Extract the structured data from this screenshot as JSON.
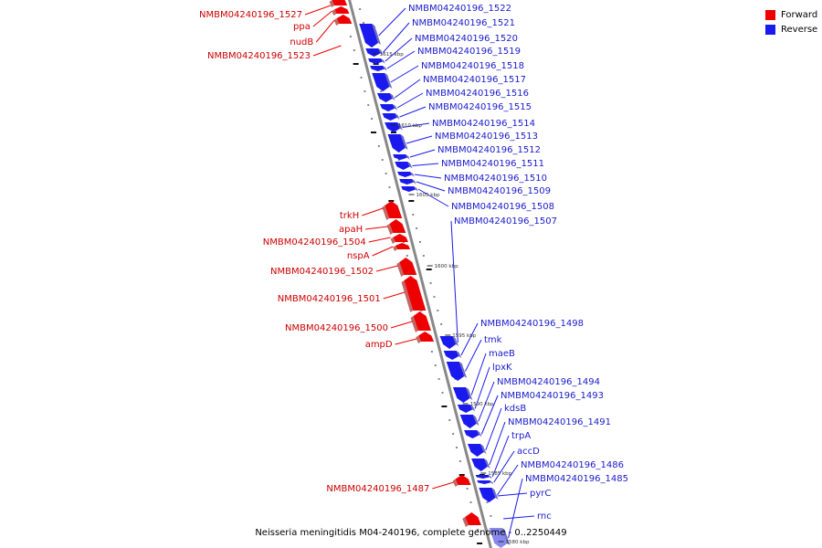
{
  "legend": {
    "forward_label": "Forward",
    "reverse_label": "Reverse",
    "forward_color": "#ee0000",
    "reverse_color": "#1a1aee"
  },
  "caption": "Neisseria meningitidis M04-240196, complete genome - 0..2250449",
  "colors": {
    "forward": "#ee0000",
    "reverse": "#1a1aee",
    "forward_text": "#cc0000",
    "reverse_text": "#1a1acc",
    "axis": "#888888"
  },
  "scale_labels": [
    "1615 kbp",
    "1610 kbp",
    "1605 kbp",
    "1600 kbp",
    "1595 kbp",
    "1590 kbp",
    "1585 kbp",
    "1580 kbp"
  ],
  "forward_genes": [
    "NMBM04240196_1527",
    "ppa",
    "nudB",
    "NMBM04240196_1523",
    "trkH",
    "apaH",
    "NMBM04240196_1504",
    "nspA",
    "NMBM04240196_1502",
    "NMBM04240196_1501",
    "NMBM04240196_1500",
    "ampD",
    "NMBM04240196_1487"
  ],
  "reverse_genes": [
    "NMBM04240196_1522",
    "NMBM04240196_1521",
    "NMBM04240196_1520",
    "NMBM04240196_1519",
    "NMBM04240196_1518",
    "NMBM04240196_1517",
    "NMBM04240196_1516",
    "NMBM04240196_1515",
    "NMBM04240196_1514",
    "NMBM04240196_1513",
    "NMBM04240196_1512",
    "NMBM04240196_1511",
    "NMBM04240196_1510",
    "NMBM04240196_1509",
    "NMBM04240196_1508",
    "NMBM04240196_1507",
    "NMBM04240196_1498",
    "tmk",
    "maeB",
    "lpxK",
    "NMBM04240196_1494",
    "NMBM04240196_1493",
    "kdsB",
    "NMBM04240196_1491",
    "trpA",
    "accD",
    "NMBM04240196_1486",
    "NMBM04240196_1485",
    "pyrC",
    "rnc"
  ]
}
